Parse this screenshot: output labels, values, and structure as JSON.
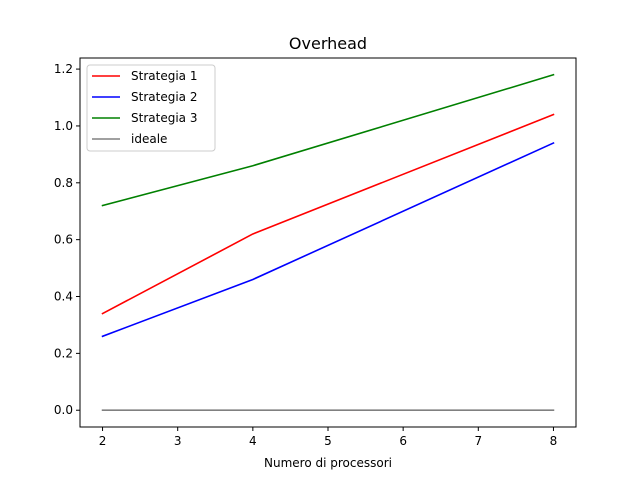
{
  "chart_data": {
    "type": "line",
    "title": "Overhead",
    "xlabel": "Numero di processori",
    "ylabel": "",
    "x": [
      2,
      4,
      8
    ],
    "xlim": [
      1.7,
      8.3
    ],
    "ylim": [
      -0.059,
      1.239
    ],
    "xticks": [
      2,
      3,
      4,
      5,
      6,
      7,
      8
    ],
    "xtick_labels": [
      "2",
      "3",
      "4",
      "5",
      "6",
      "7",
      "8"
    ],
    "yticks": [
      0.0,
      0.2,
      0.4,
      0.6,
      0.8,
      1.0,
      1.2
    ],
    "ytick_labels": [
      "0.0",
      "0.2",
      "0.4",
      "0.6",
      "0.8",
      "1.0",
      "1.2"
    ],
    "grid": false,
    "legend_position": "top-left",
    "series": [
      {
        "name": "Strategia 1",
        "color": "#ff0000",
        "values": [
          0.34,
          0.62,
          1.04
        ]
      },
      {
        "name": "Strategia 2",
        "color": "#0000ff",
        "values": [
          0.26,
          0.46,
          0.94
        ]
      },
      {
        "name": "Strategia 3",
        "color": "#008000",
        "values": [
          0.72,
          0.86,
          1.18
        ]
      },
      {
        "name": "ideale",
        "color": "#808080",
        "values": [
          0.0,
          0.0,
          0.0
        ]
      }
    ]
  }
}
